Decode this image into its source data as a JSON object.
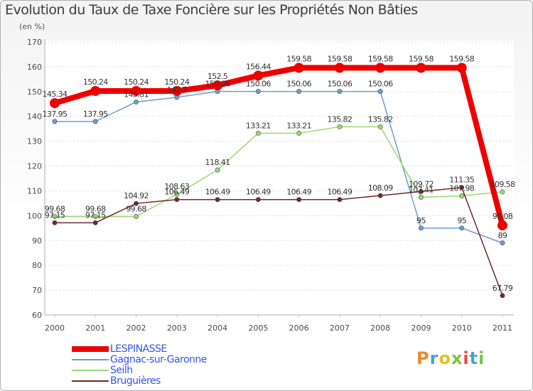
{
  "title": "Evolution du Taux de Taxe Foncière sur les Propriétés Non Bâties",
  "subtitle": "(en %)",
  "brand": {
    "letters": [
      "P",
      "r",
      "o",
      "x",
      "i",
      "t",
      "i"
    ]
  },
  "colors": {
    "axis": "#c8c8c8",
    "grid": "#d8d8d8",
    "tick_text": "#4a4a4a",
    "label_text": "#333333",
    "brand": [
      "#e8892e",
      "#4a9fd8",
      "#e8c020",
      "#7cc242",
      "#e84c3d",
      "#4a9fd8",
      "#7cc242"
    ]
  },
  "chart_data": {
    "type": "line",
    "title": "Evolution du Taux de Taxe Foncière sur les Propriétés Non Bâties",
    "ylabel": "(en %)",
    "xlabel": "",
    "ylim": [
      60,
      170
    ],
    "yticks": [
      60,
      70,
      80,
      90,
      100,
      110,
      120,
      130,
      140,
      150,
      160,
      170
    ],
    "grid": true,
    "legend_position": "bottom-left",
    "categories": [
      "2000",
      "2001",
      "2002",
      "2003",
      "2004",
      "2005",
      "2006",
      "2007",
      "2008",
      "2009",
      "2010",
      "2011"
    ],
    "series": [
      {
        "name": "LESPINASSE",
        "color": "#ee0000",
        "bold": true,
        "values": [
          145.34,
          150.24,
          150.24,
          150.24,
          152.5,
          156.44,
          159.58,
          159.58,
          159.58,
          159.58,
          159.58,
          96.08
        ],
        "labels": [
          "145.34",
          "150.24",
          "150.24",
          "150.24",
          "152.5",
          "156.44",
          "159.58",
          "159.58",
          "159.58",
          "159.58",
          "159.58",
          "96.08"
        ]
      },
      {
        "name": "Gagnac-sur-Garonne",
        "color": "#6a9ed0",
        "bold": false,
        "values": [
          137.95,
          137.95,
          145.81,
          147.7,
          150.06,
          150.06,
          150.06,
          150.06,
          150.06,
          95,
          95,
          89
        ],
        "labels": [
          "137.95",
          "137.95",
          "145.81",
          "147.7",
          "150.06",
          "150.06",
          "150.06",
          "150.06",
          "150.06",
          "95",
          "95",
          "89"
        ]
      },
      {
        "name": "Seilh",
        "color": "#9ad870",
        "bold": false,
        "values": [
          99.68,
          99.68,
          99.68,
          108.63,
          118.41,
          133.21,
          133.21,
          135.82,
          135.82,
          107.41,
          107.98,
          109.58
        ],
        "labels": [
          "99.68",
          "99.68",
          "99.68",
          "108.63",
          "118.41",
          "133.21",
          "133.21",
          "135.82",
          "135.82",
          "107.41",
          "107.98",
          "109.58"
        ]
      },
      {
        "name": "Bruguières",
        "color": "#6e2a2a",
        "bold": false,
        "values": [
          97.15,
          97.15,
          104.92,
          106.49,
          106.49,
          106.49,
          106.49,
          106.49,
          108.09,
          109.72,
          111.35,
          67.79
        ],
        "labels": [
          "97.15",
          "97.15",
          "104.92",
          "106.49",
          "106.49",
          "106.49",
          "106.49",
          "106.49",
          "108.09",
          "109.72",
          "111.35",
          "67.79"
        ]
      }
    ]
  }
}
